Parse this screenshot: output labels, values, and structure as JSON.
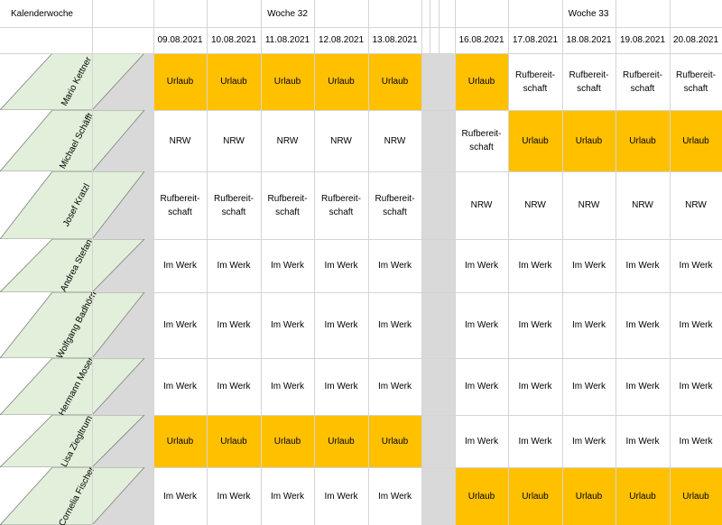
{
  "header": {
    "corner_label": "Kalenderwoche",
    "weeks": [
      "Woche 32",
      "Woche 33"
    ],
    "dates": [
      "09.08.2021",
      "10.08.2021",
      "11.08.2021",
      "12.08.2021",
      "13.08.2021",
      "16.08.2021",
      "17.08.2021",
      "18.08.2021",
      "19.08.2021",
      "20.08.2021"
    ]
  },
  "colors": {
    "urlaub": "#ffc000",
    "name_fill": "#e2efda",
    "gap": "#d9d9d9",
    "grid": "#d4d4d4"
  },
  "rows": [
    {
      "name": "Mario Kettner",
      "cells": [
        "Urlaub",
        "Urlaub",
        "Urlaub",
        "Urlaub",
        "Urlaub",
        "Urlaub",
        "Rufbereit-\nschaft",
        "Rufbereit-\nschaft",
        "Rufbereit-\nschaft",
        "Rufbereit-\nschaft"
      ]
    },
    {
      "name": "Michael Schäfft",
      "cells": [
        "NRW",
        "NRW",
        "NRW",
        "NRW",
        "NRW",
        "Rufbereit-\nschaft",
        "Urlaub",
        "Urlaub",
        "Urlaub",
        "Urlaub"
      ]
    },
    {
      "name": "Josef Kratzl",
      "cells": [
        "Rufbereit-\nschaft",
        "Rufbereit-\nschaft",
        "Rufbereit-\nschaft",
        "Rufbereit-\nschaft",
        "Rufbereit-\nschaft",
        "NRW",
        "NRW",
        "NRW",
        "NRW",
        "NRW"
      ]
    },
    {
      "name": "Andrea Stefan",
      "cells": [
        "Im Werk",
        "Im Werk",
        "Im Werk",
        "Im Werk",
        "Im Werk",
        "Im Werk",
        "Im Werk",
        "Im Werk",
        "Im Werk",
        "Im Werk"
      ]
    },
    {
      "name": "Wolfgang Badhörn",
      "cells": [
        "Im Werk",
        "Im Werk",
        "Im Werk",
        "Im Werk",
        "Im Werk",
        "Im Werk",
        "Im Werk",
        "Im Werk",
        "Im Werk",
        "Im Werk"
      ]
    },
    {
      "name": "Hermann Moser",
      "cells": [
        "Im Werk",
        "Im Werk",
        "Im Werk",
        "Im Werk",
        "Im Werk",
        "Im Werk",
        "Im Werk",
        "Im Werk",
        "Im Werk",
        "Im Werk"
      ]
    },
    {
      "name": "Lisa Ziegltrum",
      "cells": [
        "Urlaub",
        "Urlaub",
        "Urlaub",
        "Urlaub",
        "Urlaub",
        "Im Werk",
        "Im Werk",
        "Im Werk",
        "Im Werk",
        "Im Werk"
      ]
    },
    {
      "name": "Cornelia Fischer",
      "cells": [
        "Im Werk",
        "Im Werk",
        "Im Werk",
        "Im Werk",
        "Im Werk",
        "Urlaub",
        "Urlaub",
        "Urlaub",
        "Urlaub",
        "Urlaub"
      ]
    }
  ]
}
